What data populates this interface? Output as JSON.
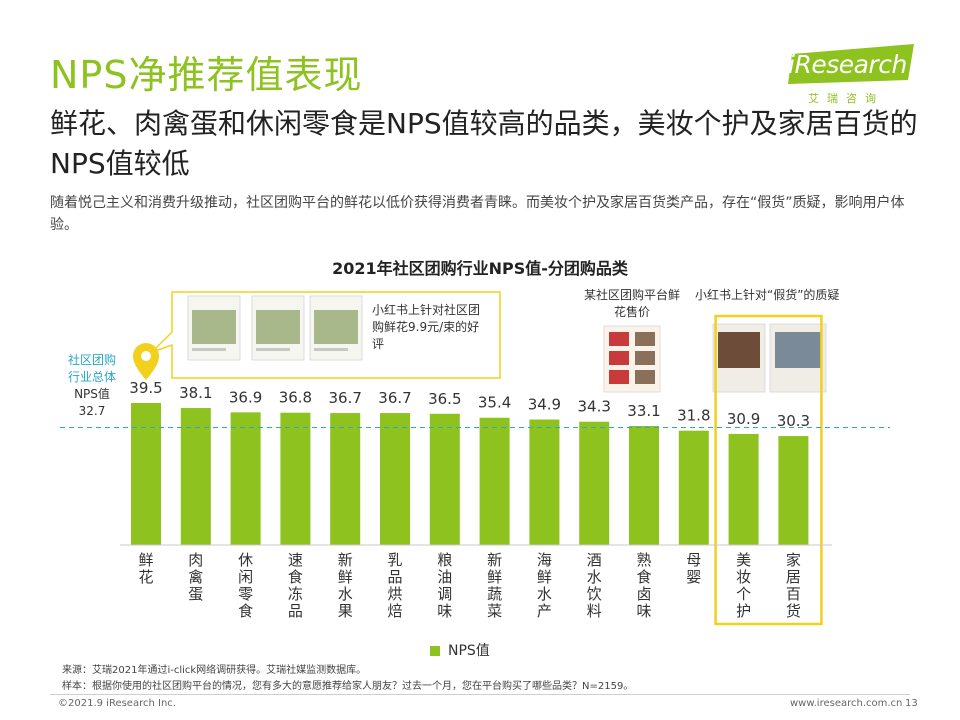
{
  "header": {
    "title": "NPS净推荐值表现",
    "subtitle": "鲜花、肉禽蛋和休闲零食是NPS值较高的品类，美妆个护及家居百货的NPS值较低",
    "description": "随着悦己主义和消费升级推动，社区团购平台的鲜花以低价获得消费者青睐。而美妆个护及家居百货类产品，存在“假货”质疑，影响用户体验。"
  },
  "logo": {
    "en": "iResearch",
    "cn": "艾瑞咨询"
  },
  "chart_data": {
    "type": "bar",
    "title": "2021年社区团购行业NPS值-分团购品类",
    "categories": [
      "鲜花",
      "肉禽蛋",
      "休闲零食",
      "速食冻品",
      "新鲜水果",
      "乳品烘焙",
      "粮油调味",
      "新鲜蔬菜",
      "海鲜水产",
      "酒水饮料",
      "熟食卤味",
      "母婴",
      "美妆个护",
      "家居百货"
    ],
    "series": [
      {
        "name": "NPS值",
        "values": [
          39.5,
          38.1,
          36.9,
          36.8,
          36.7,
          36.7,
          36.5,
          35.4,
          34.9,
          34.3,
          33.1,
          31.8,
          30.9,
          30.3
        ],
        "color": "#8dc21f"
      }
    ],
    "reference_line": {
      "value": 32.7,
      "label_line1": "社区团购",
      "label_line2": "行业总体",
      "label_line3": "NPS值",
      "value_label": "32.7",
      "color": "#2aa7c9"
    },
    "highlight_categories": [
      "美妆个护",
      "家居百货"
    ],
    "highlight_color": "#f2d01e",
    "legend": "NPS值"
  },
  "callouts": {
    "flowers_review": "小红书上针对社区团购鲜花9.9元/束的好评",
    "flowers_price": "某社区团购平台鲜花售价",
    "fake_doubt": "小红书上针对“假货”的质疑"
  },
  "footnotes": {
    "source": "来源：艾瑞2021年通过i-click网络调研获得。艾瑞社媒监测数据库。",
    "sample": "样本：根据你使用的社区团购平台的情况，您有多大的意愿推荐给家人朋友？过去一个月，您在平台购买了哪些品类？N=2159。"
  },
  "footer": {
    "copyright": "©2021.9 iResearch Inc.",
    "url": "www.iresearch.com.cn",
    "page": "13"
  }
}
